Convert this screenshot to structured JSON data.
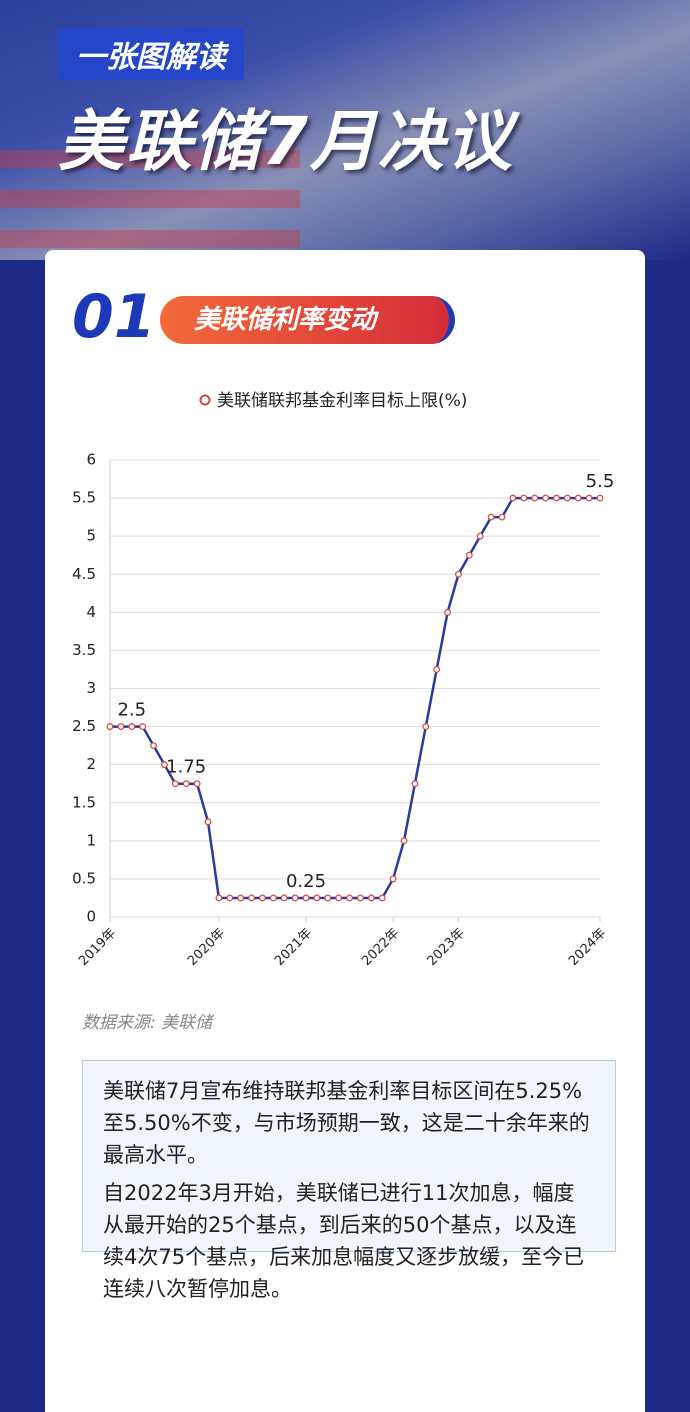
{
  "header": {
    "kicker": "一张图解读",
    "title": "美联储7月决议"
  },
  "section": {
    "number": "01",
    "title": "美联储利率变动"
  },
  "chart_data": {
    "type": "line",
    "categories": [
      "2019年",
      null,
      null,
      null,
      null,
      null,
      null,
      null,
      null,
      null,
      "2020年",
      null,
      null,
      null,
      null,
      null,
      null,
      null,
      "2021年",
      null,
      null,
      null,
      null,
      null,
      null,
      null,
      "2022年",
      null,
      null,
      null,
      null,
      null,
      "2023年",
      null,
      null,
      null,
      null,
      null,
      null,
      null,
      null,
      null,
      null,
      null,
      null,
      "2024年"
    ],
    "series": [
      {
        "name": "美联储联邦基金利率目标上限(%)",
        "color": "#2b3a9e",
        "marker_color": "#d9453a",
        "values": [
          2.5,
          2.5,
          2.5,
          2.5,
          2.25,
          2.0,
          1.75,
          1.75,
          1.75,
          1.25,
          0.25,
          0.25,
          0.25,
          0.25,
          0.25,
          0.25,
          0.25,
          0.25,
          0.25,
          0.25,
          0.25,
          0.25,
          0.25,
          0.25,
          0.25,
          0.25,
          0.5,
          1.0,
          1.75,
          2.5,
          3.25,
          4.0,
          4.5,
          4.75,
          5.0,
          5.25,
          5.25,
          5.5,
          5.5,
          5.5,
          5.5,
          5.5,
          5.5,
          5.5,
          5.5,
          5.5
        ],
        "value_labels": [
          null,
          null,
          "2.5",
          null,
          null,
          null,
          null,
          "1.75",
          null,
          null,
          null,
          null,
          null,
          null,
          null,
          null,
          null,
          null,
          "0.25",
          null,
          null,
          null,
          null,
          null,
          null,
          null,
          null,
          null,
          null,
          null,
          null,
          null,
          null,
          null,
          null,
          null,
          null,
          null,
          null,
          null,
          null,
          null,
          null,
          null,
          null,
          "5.5"
        ]
      }
    ],
    "ylim": [
      0,
      6
    ],
    "yticks": [
      0,
      0.5,
      1,
      1.5,
      2,
      2.5,
      3,
      3.5,
      4,
      4.5,
      5,
      5.5,
      6
    ],
    "grid": true,
    "legend": "top"
  },
  "source": "数据来源: 美联储",
  "paragraphs": [
    "美联储7月宣布维持联邦基金利率目标区间在5.25%至5.50%不变，与市场预期一致，这是二十余年来的最高水平。",
    "自2022年3月开始，美联储已进行11次加息，幅度从最开始的25个基点，到后来的50个基点，以及连续4次75个基点，后来加息幅度又逐步放缓，至今已连续八次暂停加息。"
  ]
}
